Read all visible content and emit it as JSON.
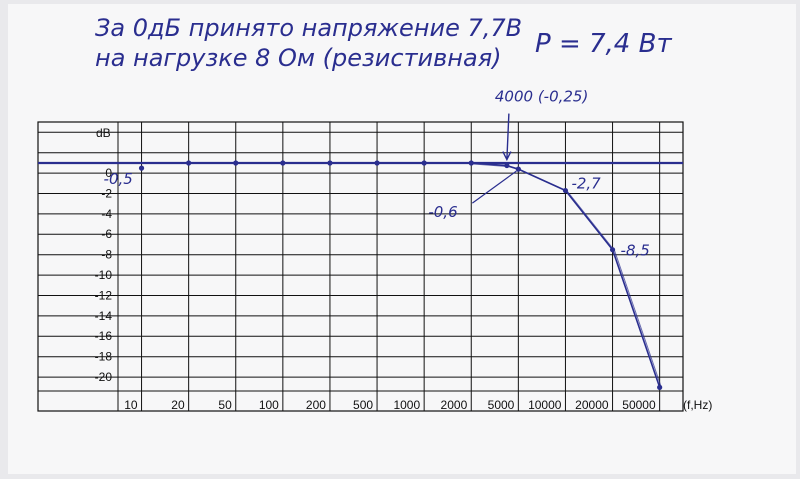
{
  "notes": {
    "line1": "За 0дБ принято напряжение 7,7В",
    "line2": "на нагрузке 8 Ом (резистивная)",
    "power": "P = 7,4 Вт"
  },
  "chart_data": {
    "type": "line",
    "xlabel": "(f,Hz)",
    "ylabel": "dB",
    "x_ticks": [
      "10",
      "20",
      "50",
      "100",
      "200",
      "500",
      "1000",
      "2000",
      "5000",
      "10000",
      "20000",
      "50000"
    ],
    "y_ticks": [
      "0",
      "-2",
      "-4",
      "-6",
      "-8",
      "-10",
      "-12",
      "-14",
      "-16",
      "-18",
      "-20"
    ],
    "ylim": [
      -22,
      2
    ],
    "scale": "log-stepped",
    "grid": true,
    "color": "#2a2e8f",
    "series": [
      {
        "points": [
          {
            "x": 10,
            "y": -0.5
          },
          {
            "x": 20,
            "y": 0
          },
          {
            "x": 50,
            "y": 0
          },
          {
            "x": 100,
            "y": 0
          },
          {
            "x": 200,
            "y": 0
          },
          {
            "x": 500,
            "y": 0
          },
          {
            "x": 1000,
            "y": 0
          },
          {
            "x": 2000,
            "y": 0
          },
          {
            "x": 4000,
            "y": -0.25
          },
          {
            "x": 5000,
            "y": -0.6
          },
          {
            "x": 10000,
            "y": -2.7
          },
          {
            "x": 20000,
            "y": -8.5
          },
          {
            "x": 50000,
            "y": -22
          }
        ]
      }
    ],
    "annotations": [
      {
        "text": "-0,5",
        "x": 10,
        "y": -0.5
      },
      {
        "text": "4000 (-0,25)",
        "x": 4000,
        "y": -0.25
      },
      {
        "text": "-0,6",
        "x": 5000,
        "y": -0.6
      },
      {
        "text": "-2,7",
        "x": 10000,
        "y": -2.7
      },
      {
        "text": "-8,5",
        "x": 20000,
        "y": -8.5
      }
    ]
  }
}
